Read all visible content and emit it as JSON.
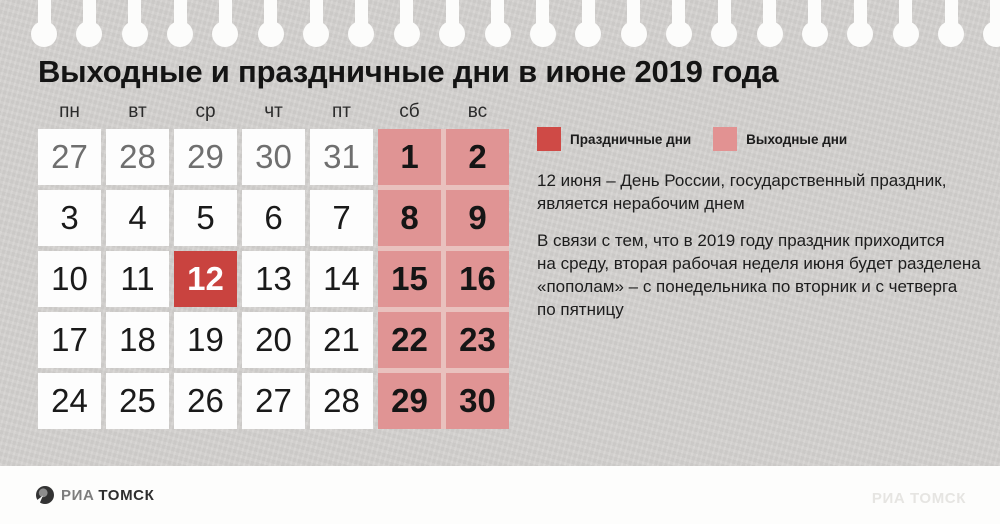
{
  "title": "Выходные и праздничные дни в июне 2019 года",
  "calendar": {
    "weekday_headers": [
      "пн",
      "вт",
      "ср",
      "чт",
      "пт",
      "сб",
      "вс"
    ],
    "weeks": [
      [
        {
          "day": "27",
          "type": "prev"
        },
        {
          "day": "28",
          "type": "prev"
        },
        {
          "day": "29",
          "type": "prev"
        },
        {
          "day": "30",
          "type": "prev"
        },
        {
          "day": "31",
          "type": "prev"
        },
        {
          "day": "1",
          "type": "weekend"
        },
        {
          "day": "2",
          "type": "weekend"
        }
      ],
      [
        {
          "day": "3",
          "type": "work"
        },
        {
          "day": "4",
          "type": "work"
        },
        {
          "day": "5",
          "type": "work"
        },
        {
          "day": "6",
          "type": "work"
        },
        {
          "day": "7",
          "type": "work"
        },
        {
          "day": "8",
          "type": "weekend"
        },
        {
          "day": "9",
          "type": "weekend"
        }
      ],
      [
        {
          "day": "10",
          "type": "work"
        },
        {
          "day": "11",
          "type": "work"
        },
        {
          "day": "12",
          "type": "holiday"
        },
        {
          "day": "13",
          "type": "work"
        },
        {
          "day": "14",
          "type": "work"
        },
        {
          "day": "15",
          "type": "weekend"
        },
        {
          "day": "16",
          "type": "weekend"
        }
      ],
      [
        {
          "day": "17",
          "type": "work"
        },
        {
          "day": "18",
          "type": "work"
        },
        {
          "day": "19",
          "type": "work"
        },
        {
          "day": "20",
          "type": "work"
        },
        {
          "day": "21",
          "type": "work"
        },
        {
          "day": "22",
          "type": "weekend"
        },
        {
          "day": "23",
          "type": "weekend"
        }
      ],
      [
        {
          "day": "24",
          "type": "work"
        },
        {
          "day": "25",
          "type": "work"
        },
        {
          "day": "26",
          "type": "work"
        },
        {
          "day": "27",
          "type": "work"
        },
        {
          "day": "28",
          "type": "work"
        },
        {
          "day": "29",
          "type": "weekend"
        },
        {
          "day": "30",
          "type": "weekend"
        }
      ]
    ]
  },
  "legend": {
    "items": [
      {
        "label": "Праздничные дни",
        "color": "#cf4a46"
      },
      {
        "label": "Выходные дни",
        "color": "#e29292"
      }
    ]
  },
  "notes": {
    "holiday_note_lines": [
      "12 июня – День России, государственный праздник,",
      "является нерабочим днем"
    ],
    "week_note_lines": [
      "В связи с тем, что в 2019 году праздник приходится",
      "на среду, вторая рабочая неделя июня будет разделена",
      "«пополам» – с понедельника по вторник и с четверга",
      "по пятницу"
    ]
  },
  "footer": {
    "logo_ria": "РИА",
    "logo_tomsk": "ТОМСК",
    "watermark": "РИА ТОМСК"
  },
  "colors": {
    "holiday": "#c9433f",
    "weekend": "#e09494",
    "weekend_gap": "#e9c1be",
    "paper": "#d3d1cf",
    "cell": "#fdfdfd"
  }
}
